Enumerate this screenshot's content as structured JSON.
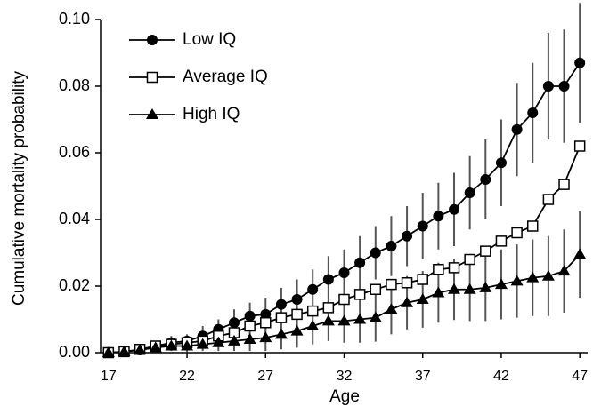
{
  "chart_data": {
    "type": "line",
    "x_label": "Age",
    "y_label": "Cumulative mortality probability",
    "x": [
      17,
      18,
      19,
      20,
      21,
      22,
      23,
      24,
      25,
      26,
      27,
      28,
      29,
      30,
      31,
      32,
      33,
      34,
      35,
      36,
      37,
      38,
      39,
      40,
      41,
      42,
      43,
      44,
      45,
      46,
      47
    ],
    "xlim": [
      16.5,
      47.5
    ],
    "xticks": [
      17,
      22,
      27,
      32,
      37,
      42,
      47
    ],
    "ylim": [
      0,
      0.1
    ],
    "yticks": [
      {
        "value": 0,
        "label": "0.00"
      },
      0.02,
      0.04,
      0.06,
      0.08,
      {
        "value": 0.1,
        "label": "0.10"
      }
    ],
    "grid": false,
    "legend": "top-left",
    "series": [
      {
        "name": "Low IQ",
        "color": "#000000",
        "marker": "circle",
        "values": [
          0,
          0.0003,
          0.0008,
          0.002,
          0.003,
          0.0035,
          0.005,
          0.007,
          0.009,
          0.011,
          0.0115,
          0.0145,
          0.016,
          0.019,
          0.022,
          0.024,
          0.027,
          0.03,
          0.032,
          0.035,
          0.038,
          0.041,
          0.043,
          0.048,
          0.052,
          0.057,
          0.067,
          0.072,
          0.08,
          0.08,
          0.087
        ],
        "errors": [
          0,
          0.0005,
          0.001,
          0.0015,
          0.002,
          0.002,
          0.003,
          0.003,
          0.004,
          0.004,
          0.005,
          0.005,
          0.006,
          0.006,
          0.007,
          0.007,
          0.008,
          0.008,
          0.009,
          0.009,
          0.01,
          0.01,
          0.011,
          0.011,
          0.012,
          0.013,
          0.014,
          0.015,
          0.016,
          0.017,
          0.018
        ]
      },
      {
        "name": "Average IQ",
        "color": "#000000",
        "marker": "square",
        "values": [
          0,
          0.0003,
          0.001,
          0.002,
          0.0025,
          0.003,
          0.0035,
          0.005,
          0.006,
          0.008,
          0.009,
          0.0105,
          0.0115,
          0.0125,
          0.0135,
          0.016,
          0.0175,
          0.019,
          0.0205,
          0.021,
          0.022,
          0.025,
          0.0255,
          0.028,
          0.0305,
          0.0335,
          0.036,
          0.038,
          0.046,
          0.0505,
          0.062
        ]
      },
      {
        "name": "High IQ",
        "color": "#000000",
        "marker": "triangle",
        "values": [
          0,
          0.0003,
          0.0008,
          0.0015,
          0.002,
          0.002,
          0.0025,
          0.003,
          0.0035,
          0.004,
          0.0045,
          0.0055,
          0.0065,
          0.008,
          0.0095,
          0.0095,
          0.01,
          0.0105,
          0.013,
          0.015,
          0.016,
          0.018,
          0.019,
          0.019,
          0.0195,
          0.0205,
          0.0215,
          0.0225,
          0.023,
          0.0245,
          0.0295
        ],
        "errors": [
          0,
          0.0003,
          0.0005,
          0.001,
          0.0015,
          0.0018,
          0.002,
          0.0025,
          0.003,
          0.0035,
          0.004,
          0.0045,
          0.005,
          0.0055,
          0.006,
          0.0065,
          0.007,
          0.0072,
          0.0075,
          0.008,
          0.0085,
          0.009,
          0.0092,
          0.0095,
          0.01,
          0.0105,
          0.011,
          0.0115,
          0.012,
          0.0125,
          0.013
        ]
      }
    ]
  }
}
